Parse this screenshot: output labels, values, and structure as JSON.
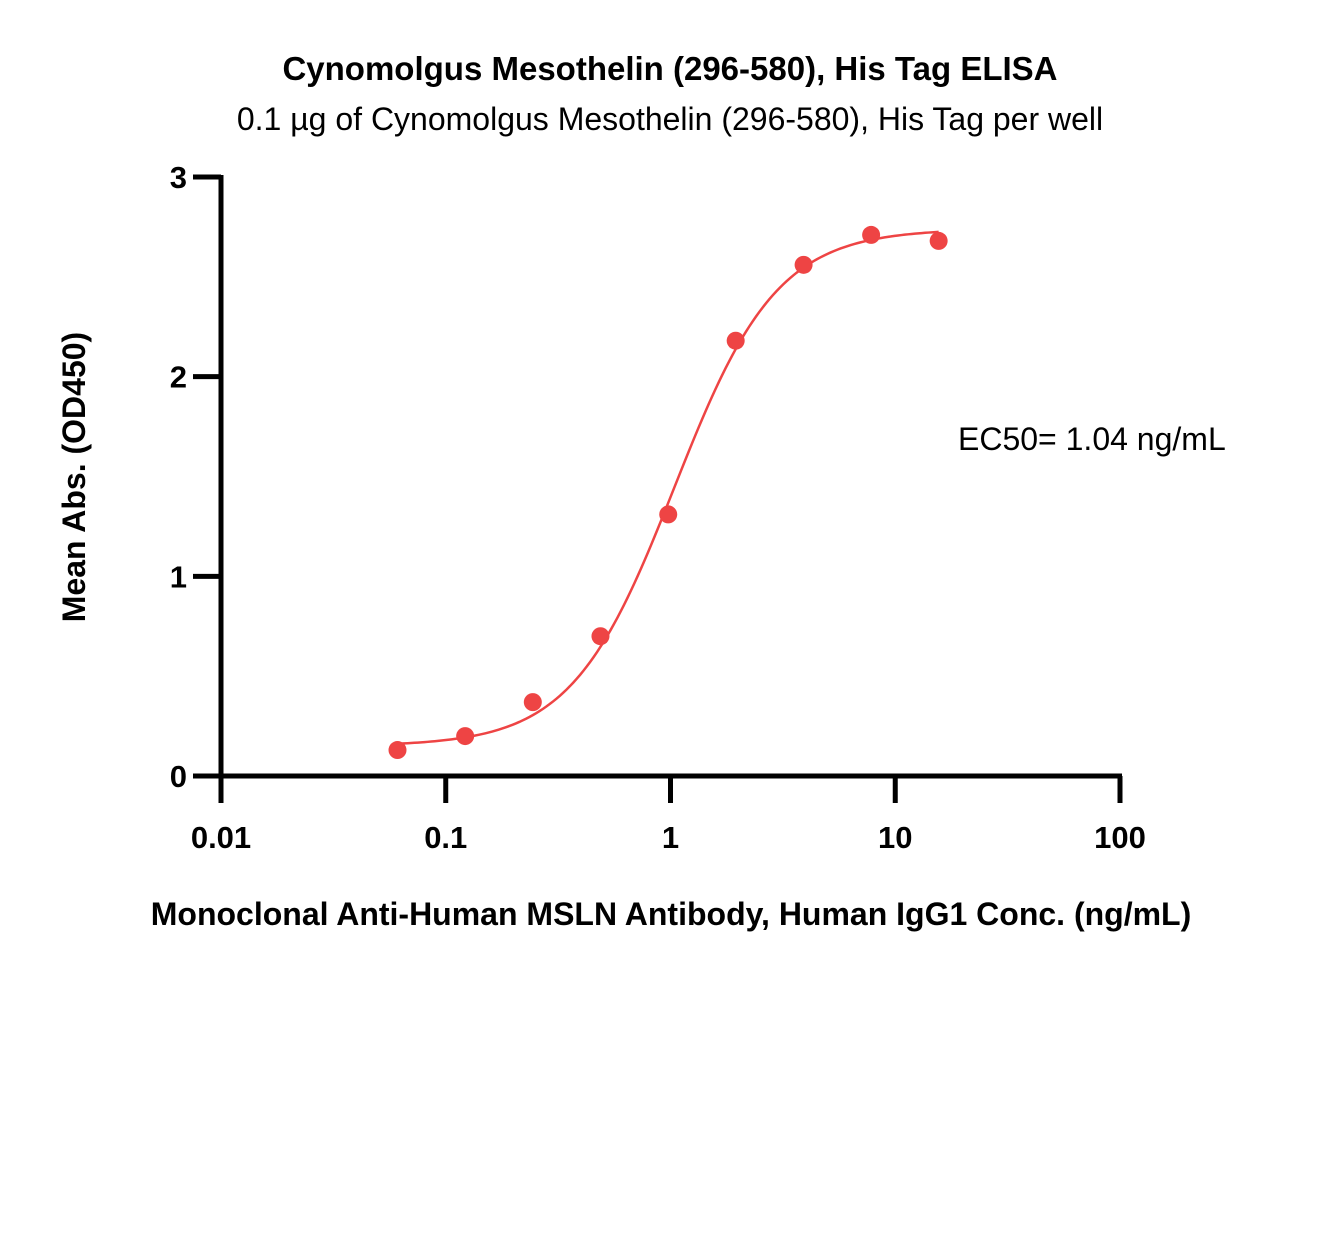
{
  "chart_data": {
    "type": "scatter",
    "title": "Cynomolgus Mesothelin (296-580), His Tag ELISA",
    "subtitle": "0.1 µg of Cynomolgus Mesothelin (296-580), His Tag per well",
    "xlabel": "Monoclonal Anti-Human MSLN Antibody, Human IgG1 Conc. (ng/mL)",
    "ylabel": "Mean Abs. (OD450)",
    "x_scale": "log",
    "xlim": [
      0.01,
      100
    ],
    "ylim": [
      0,
      3
    ],
    "x_ticks": [
      0.01,
      0.1,
      1,
      10,
      100
    ],
    "x_tick_labels": [
      "0.01",
      "0.1",
      "1",
      "10",
      "100"
    ],
    "y_ticks": [
      0,
      1,
      2,
      3
    ],
    "y_tick_labels": [
      "0",
      "1",
      "2",
      "3"
    ],
    "grid": false,
    "series": [
      {
        "color": "#ee4444",
        "x": [
          0.061,
          0.122,
          0.244,
          0.488,
          0.977,
          1.95,
          3.91,
          7.81,
          15.6
        ],
        "y": [
          0.13,
          0.2,
          0.37,
          0.7,
          1.31,
          2.18,
          2.56,
          2.71,
          2.68
        ],
        "fit": {
          "model": "4PL",
          "bottom": 0.15,
          "top": 2.74,
          "ec50": 1.04,
          "hill": 1.9
        }
      }
    ],
    "annotations": [
      {
        "text": "EC50= 1.04 ng/mL"
      }
    ]
  }
}
